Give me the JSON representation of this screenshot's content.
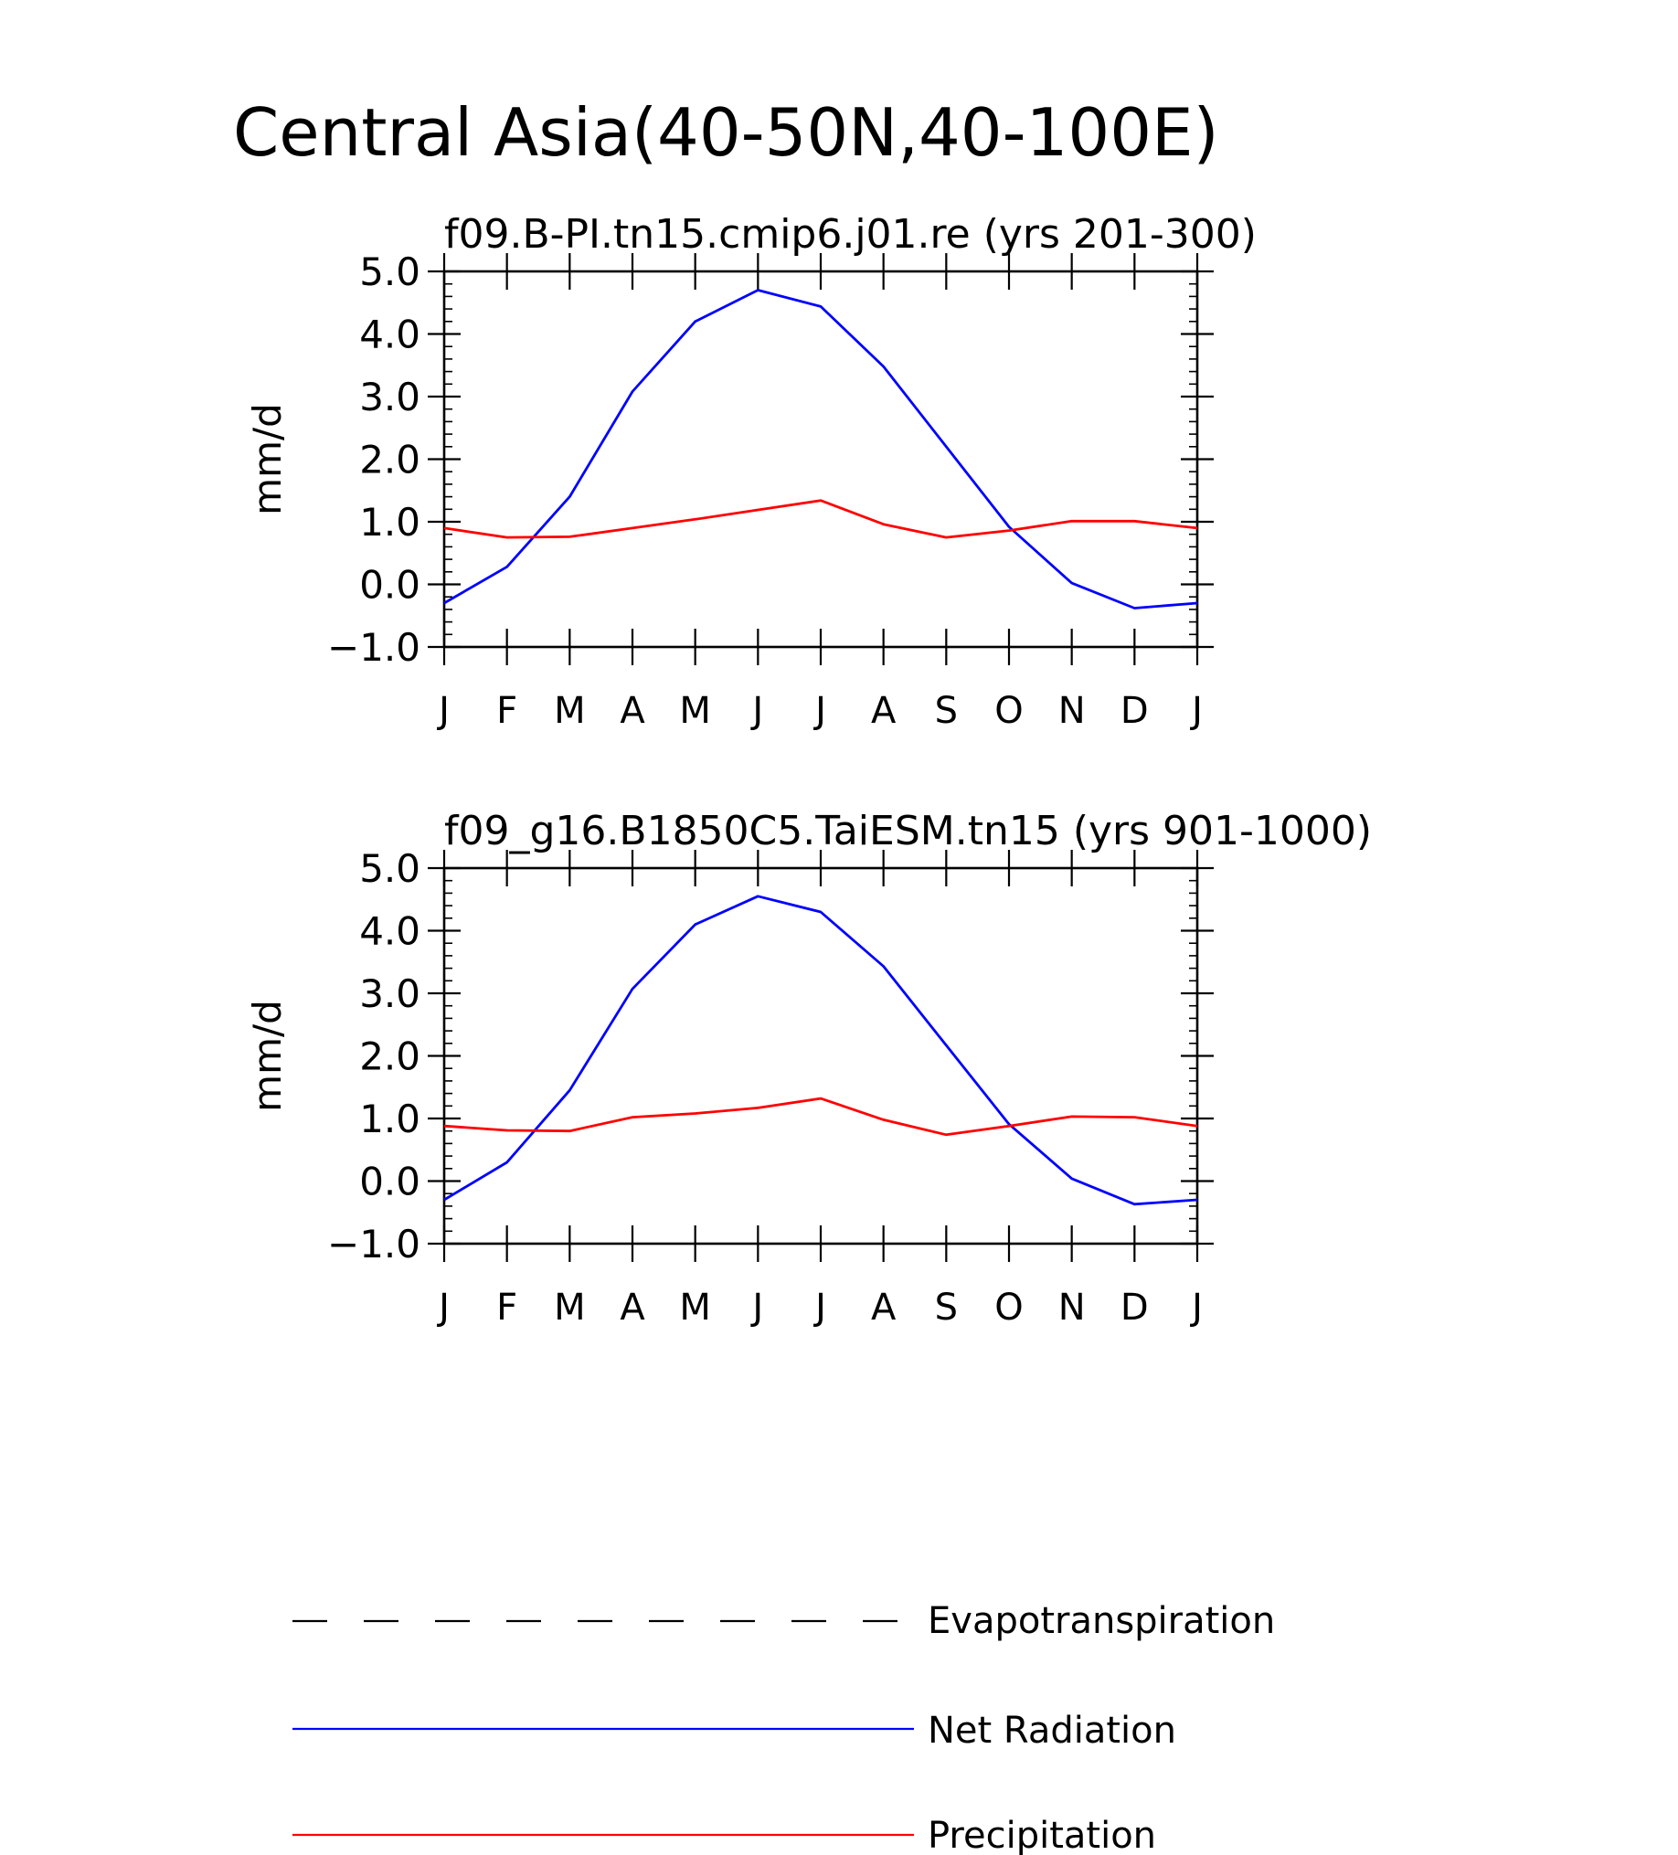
{
  "figure": {
    "title": "Central Asia(40-50N,40-100E)"
  },
  "legend": {
    "placement": "bottom",
    "entries": [
      {
        "label": "Evapotranspiration",
        "color": "#000000",
        "style": "dashed"
      },
      {
        "label": "Net Radiation",
        "color": "#0000ff",
        "style": "solid"
      },
      {
        "label": "Precipitation",
        "color": "#ff0000",
        "style": "solid"
      }
    ]
  },
  "chart_data": [
    {
      "type": "line",
      "title": "f09.B-PI.tn15.cmip6.j01.re (yrs 201-300)",
      "ylabel": "mm/d",
      "xlabel": "",
      "ylim": [
        -1.0,
        5.0
      ],
      "yticks": [
        "-1.0",
        "0.0",
        "1.0",
        "2.0",
        "3.0",
        "4.0",
        "5.0"
      ],
      "categories": [
        "J",
        "F",
        "M",
        "A",
        "M",
        "J",
        "J",
        "A",
        "S",
        "O",
        "N",
        "D",
        "J"
      ],
      "grid": false,
      "series": [
        {
          "name": "Net Radiation",
          "color": "#0000ff",
          "values": [
            -0.3,
            0.28,
            1.4,
            3.08,
            4.2,
            4.7,
            4.44,
            3.48,
            2.2,
            0.92,
            0.02,
            -0.38,
            -0.3
          ]
        },
        {
          "name": "Precipitation",
          "color": "#ff0000",
          "values": [
            0.9,
            0.75,
            0.76,
            0.9,
            1.04,
            1.19,
            1.34,
            0.96,
            0.75,
            0.86,
            1.01,
            1.01,
            0.9
          ]
        }
      ]
    },
    {
      "type": "line",
      "title": "f09_g16.B1850C5.TaiESM.tn15 (yrs 901-1000)",
      "ylabel": "mm/d",
      "xlabel": "",
      "ylim": [
        -1.0,
        5.0
      ],
      "yticks": [
        "-1.0",
        "0.0",
        "1.0",
        "2.0",
        "3.0",
        "4.0",
        "5.0"
      ],
      "categories": [
        "J",
        "F",
        "M",
        "A",
        "M",
        "J",
        "J",
        "A",
        "S",
        "O",
        "N",
        "D",
        "J"
      ],
      "grid": false,
      "series": [
        {
          "name": "Net Radiation",
          "color": "#0000ff",
          "values": [
            -0.3,
            0.3,
            1.45,
            3.07,
            4.1,
            4.55,
            4.3,
            3.43,
            2.17,
            0.91,
            0.04,
            -0.37,
            -0.3
          ]
        },
        {
          "name": "Precipitation",
          "color": "#ff0000",
          "values": [
            0.88,
            0.81,
            0.8,
            1.02,
            1.08,
            1.17,
            1.32,
            0.98,
            0.74,
            0.88,
            1.03,
            1.02,
            0.88
          ]
        }
      ]
    }
  ]
}
